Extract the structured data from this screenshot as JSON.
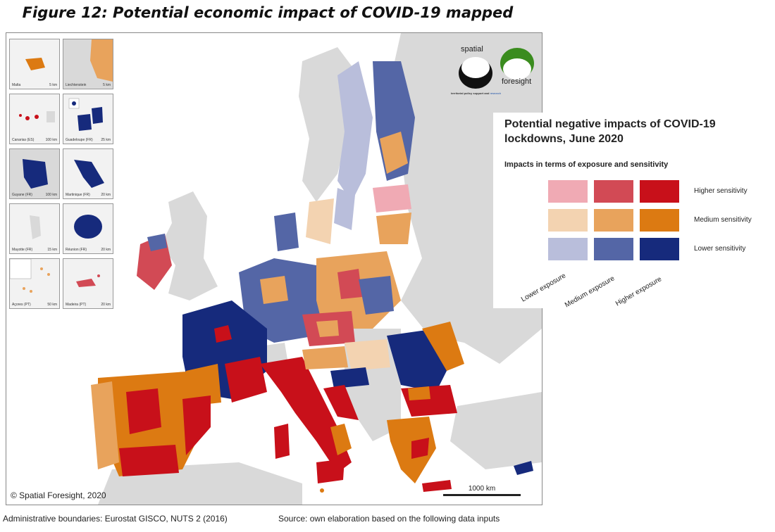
{
  "figure_title": "Figure 12: Potential economic impact of COVID-19 mapped",
  "colors": {
    "sea": "#ffffff",
    "non_eu": "#d9d9d9",
    "low_exposure_high_sens": "#f0aab4",
    "med_exposure_high_sens": "#d24a55",
    "high_exposure_high_sens": "#c8101a",
    "low_exposure_med_sens": "#f3d3b1",
    "med_exposure_med_sens": "#e8a35c",
    "high_exposure_med_sens": "#dc7a12",
    "low_exposure_low_sens": "#b9bedb",
    "med_exposure_low_sens": "#5466a6",
    "high_exposure_low_sens": "#162a7c"
  },
  "insets": [
    {
      "label": "Malta",
      "scale": "5 km"
    },
    {
      "label": "Liechtenstein",
      "scale": "5 km"
    },
    {
      "label": "Canarias (ES)",
      "scale": "100 km"
    },
    {
      "label": "Guadeloupe (FR)",
      "scale": "25 km"
    },
    {
      "label": "Guyane (FR)",
      "scale": "100 km"
    },
    {
      "label": "Martinique (FR)",
      "scale": "20 km"
    },
    {
      "label": "Mayotte (FR)",
      "scale": "15 km"
    },
    {
      "label": "Réunion (FR)",
      "scale": "20 km"
    },
    {
      "label": "Açores (PT)",
      "scale": "50 km"
    },
    {
      "label": "Madeira (PT)",
      "scale": "20 km"
    }
  ],
  "logo": {
    "word1": "spatial",
    "word2": "foresight",
    "tagline": "territorial policy support and ",
    "tagline_link": "research"
  },
  "copyright": "© Spatial Foresight, 2020",
  "scale_label": "1000 km",
  "legend": {
    "title": "Potential negative impacts of COVID-19 lockdowns, June 2020",
    "subtitle": "Impacts in terms of exposure and sensitivity",
    "rows": [
      "Higher sensitivity",
      "Medium sensitivity",
      "Lower sensitivity"
    ],
    "cols": [
      "Lower exposure",
      "Medium exposure",
      "Higher exposure"
    ]
  },
  "footer": {
    "left": "Administrative boundaries: Eurostat GISCO, NUTS 2 (2016)",
    "right": "Source: own elaboration based on the following data inputs"
  }
}
